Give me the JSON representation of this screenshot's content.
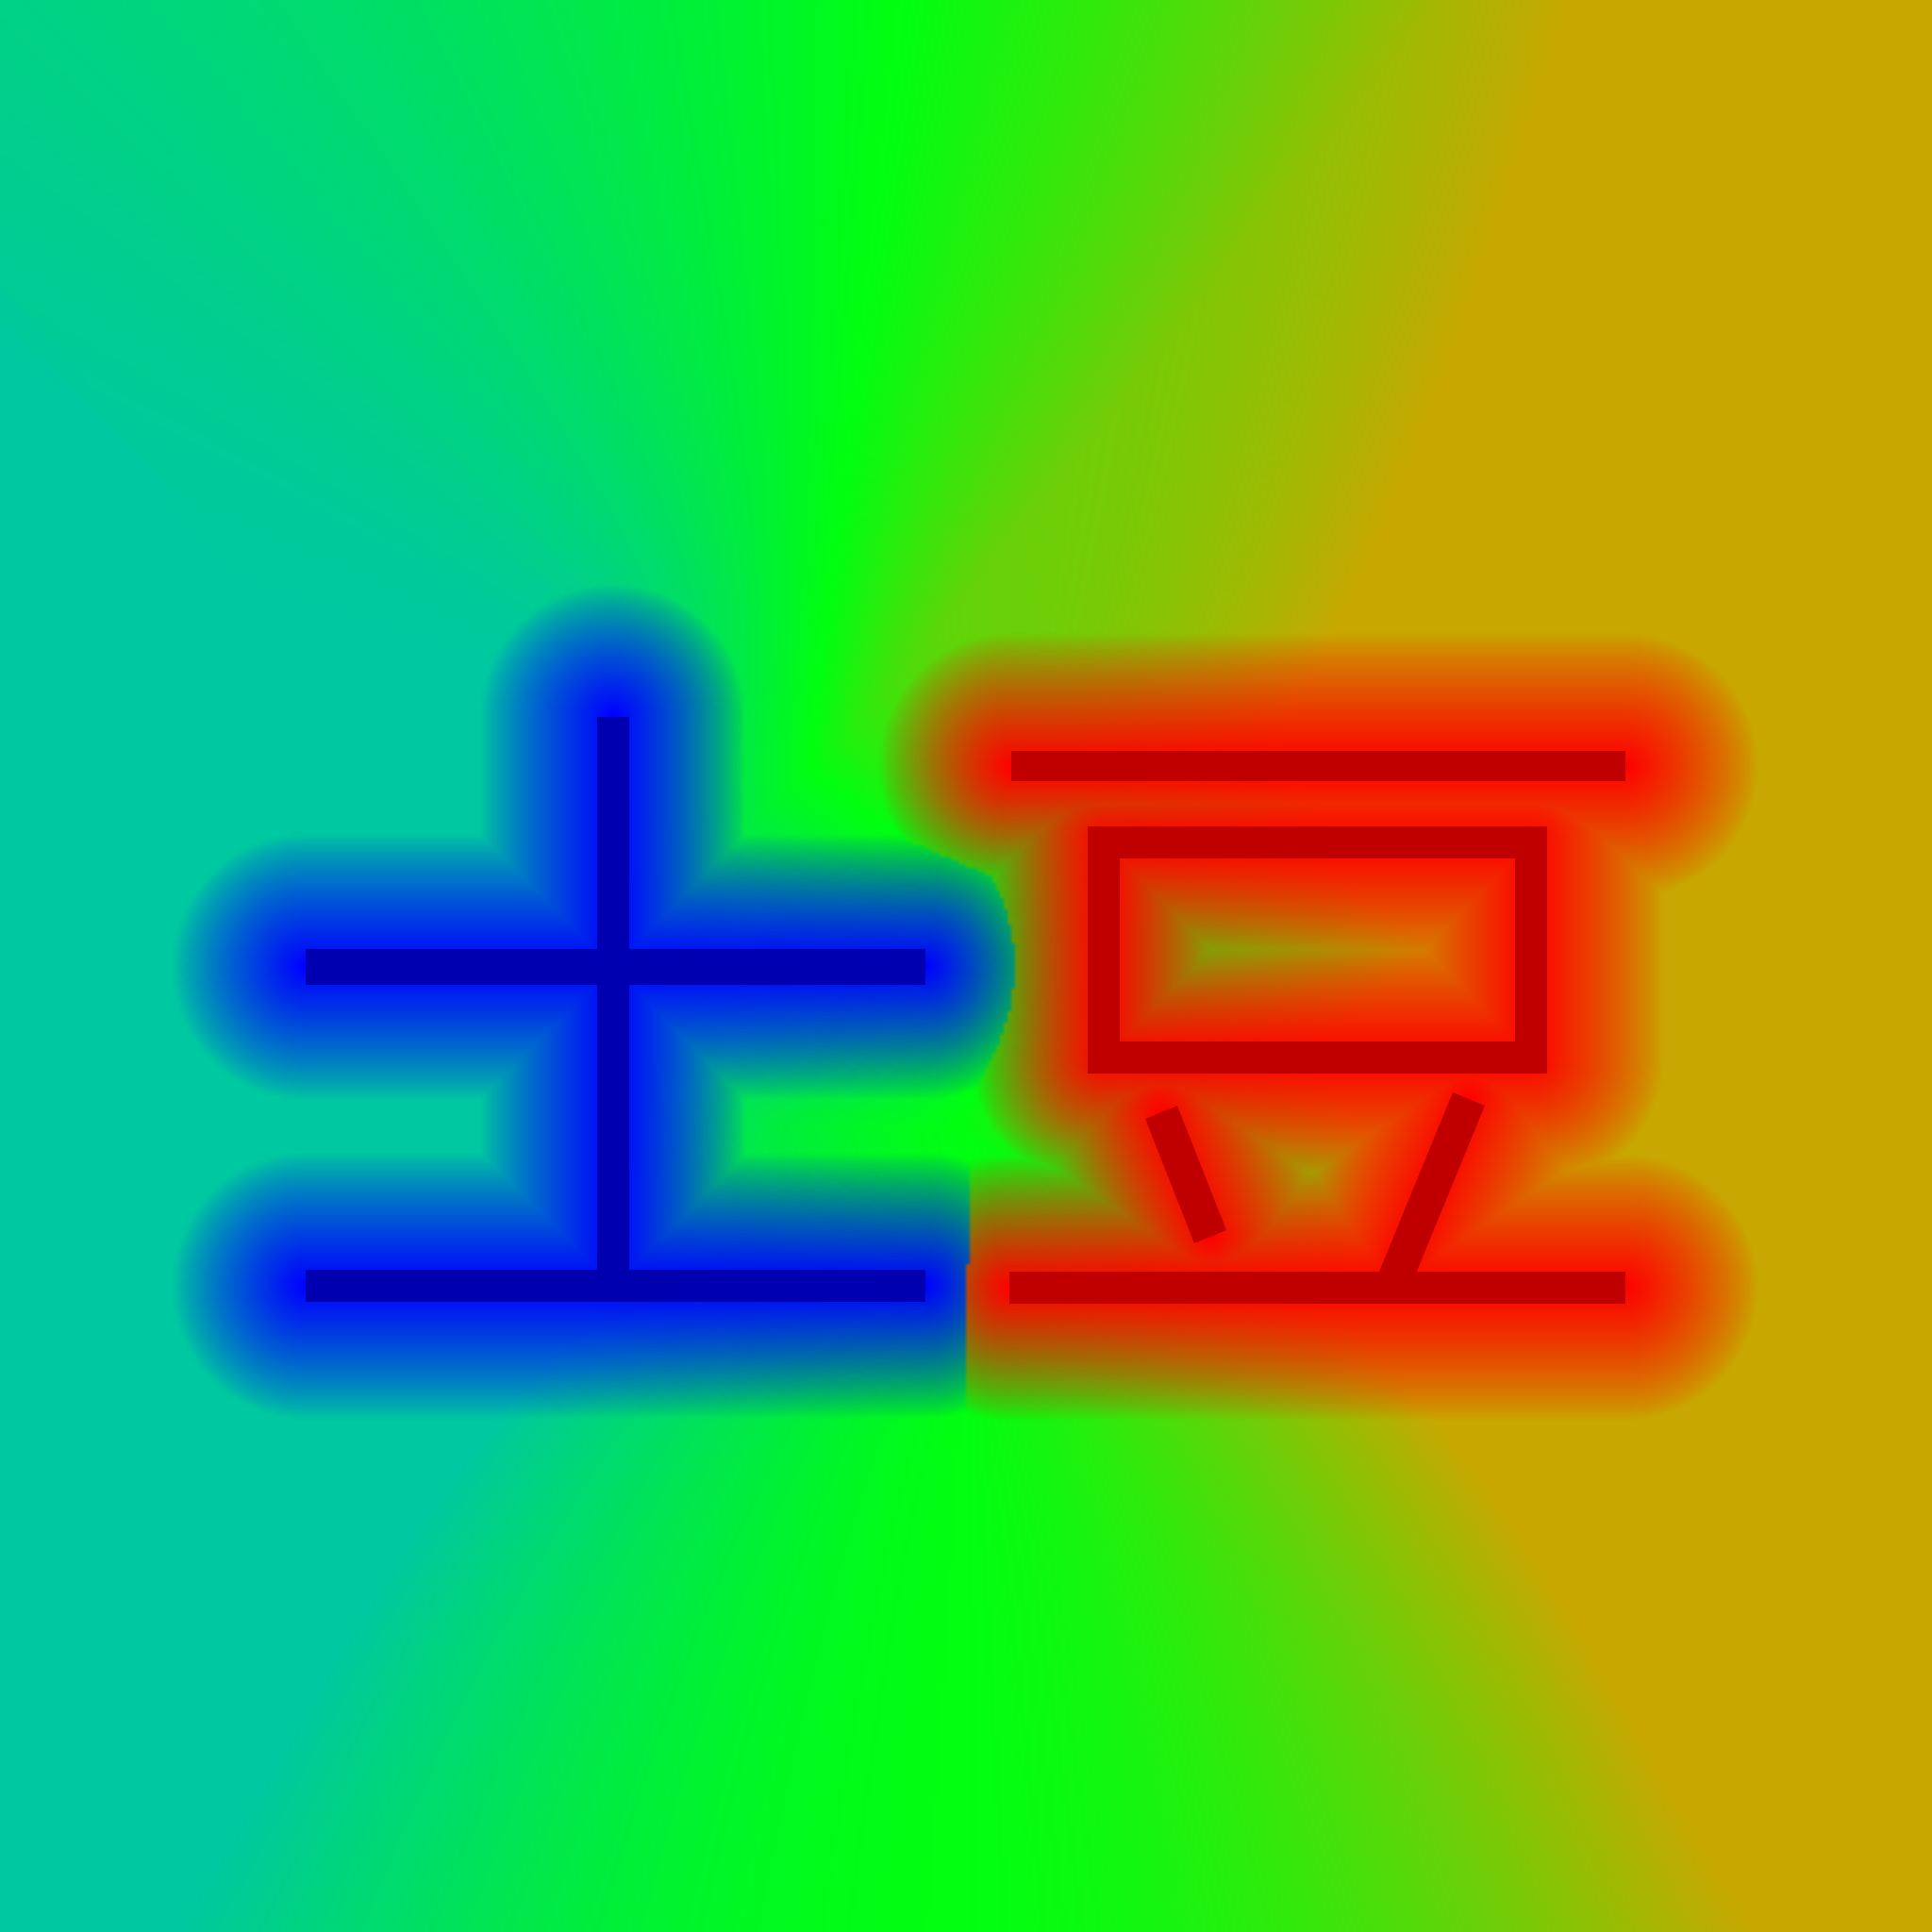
{
  "image": {
    "kind": "color-mapped distance field around two stroke glyphs",
    "glyphs": [
      {
        "name": "left-glyph",
        "text": "",
        "stroke_color": "#0000b0",
        "halo_color": "#0000ff"
      },
      {
        "name": "right-glyph",
        "text": "",
        "stroke_color": "#c00000",
        "halo_color": "#ff0000"
      }
    ],
    "background_colors": {
      "far_left": "#00c8a0",
      "middle": "#00ff10",
      "far_right": "#c8a800"
    }
  }
}
